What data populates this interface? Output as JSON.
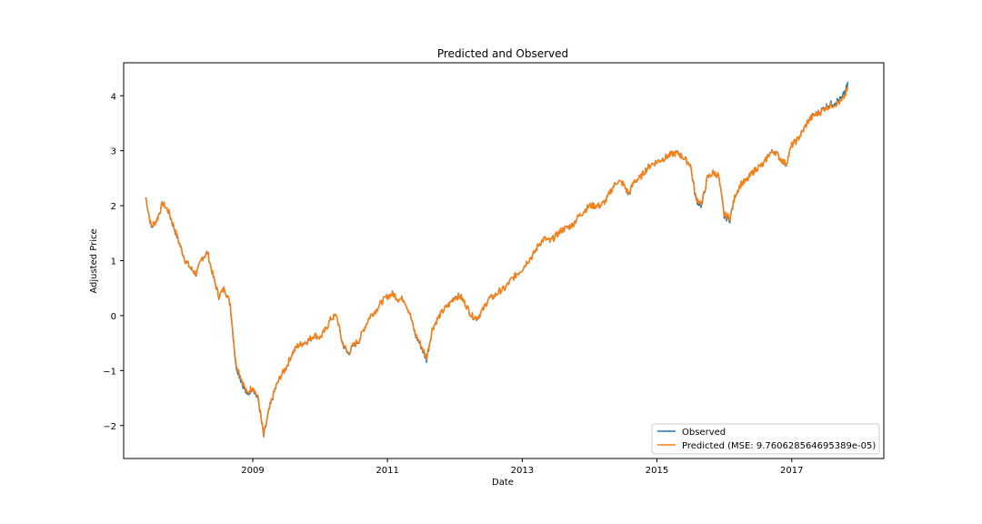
{
  "chart_data": {
    "type": "line",
    "title": "Predicted and Observed",
    "xlabel": "Date",
    "ylabel": "Adjusted Price",
    "xlim": [
      "2007-02-01",
      "2018-05-15"
    ],
    "ylim": [
      -2.6,
      4.6
    ],
    "x_ticks": [
      "2009",
      "2011",
      "2013",
      "2015",
      "2017"
    ],
    "y_ticks": [
      "−2",
      "−1",
      "0",
      "1",
      "2",
      "3",
      "4"
    ],
    "y_tick_values": [
      -2,
      -1,
      0,
      1,
      2,
      3,
      4
    ],
    "grid": false,
    "legend_position": "lower-right",
    "series": [
      {
        "name": "Observed",
        "color": "#1f77b4",
        "x": [
          "2007-06-01",
          "2007-07-01",
          "2007-08-01",
          "2007-09-01",
          "2007-10-01",
          "2007-11-01",
          "2007-12-01",
          "2008-01-01",
          "2008-02-01",
          "2008-03-01",
          "2008-04-01",
          "2008-05-01",
          "2008-06-01",
          "2008-07-01",
          "2008-08-01",
          "2008-09-01",
          "2008-10-01",
          "2008-11-01",
          "2008-12-01",
          "2009-01-01",
          "2009-02-01",
          "2009-03-01",
          "2009-04-01",
          "2009-05-01",
          "2009-06-01",
          "2009-07-01",
          "2009-08-01",
          "2009-09-01",
          "2009-10-01",
          "2009-11-01",
          "2009-12-01",
          "2010-01-01",
          "2010-02-01",
          "2010-03-01",
          "2010-04-01",
          "2010-05-01",
          "2010-06-01",
          "2010-07-01",
          "2010-08-01",
          "2010-09-01",
          "2010-10-01",
          "2010-11-01",
          "2010-12-01",
          "2011-01-01",
          "2011-02-01",
          "2011-03-01",
          "2011-04-01",
          "2011-05-01",
          "2011-06-01",
          "2011-07-01",
          "2011-08-01",
          "2011-09-01",
          "2011-10-01",
          "2011-11-01",
          "2011-12-01",
          "2012-01-01",
          "2012-02-01",
          "2012-03-01",
          "2012-04-01",
          "2012-05-01",
          "2012-06-01",
          "2012-07-01",
          "2012-08-01",
          "2012-09-01",
          "2012-10-01",
          "2012-11-01",
          "2012-12-01",
          "2013-01-01",
          "2013-02-01",
          "2013-03-01",
          "2013-04-01",
          "2013-05-01",
          "2013-06-01",
          "2013-07-01",
          "2013-08-01",
          "2013-09-01",
          "2013-10-01",
          "2013-11-01",
          "2013-12-01",
          "2014-01-01",
          "2014-02-01",
          "2014-03-01",
          "2014-04-01",
          "2014-05-01",
          "2014-06-01",
          "2014-07-01",
          "2014-08-01",
          "2014-09-01",
          "2014-10-01",
          "2014-11-01",
          "2014-12-01",
          "2015-01-01",
          "2015-02-01",
          "2015-03-01",
          "2015-04-01",
          "2015-05-01",
          "2015-06-01",
          "2015-07-01",
          "2015-08-01",
          "2015-09-01",
          "2015-10-01",
          "2015-11-01",
          "2015-12-01",
          "2016-01-01",
          "2016-02-01",
          "2016-03-01",
          "2016-04-01",
          "2016-05-01",
          "2016-06-01",
          "2016-07-01",
          "2016-08-01",
          "2016-09-01",
          "2016-10-01",
          "2016-11-01",
          "2016-12-01",
          "2017-01-01",
          "2017-02-01",
          "2017-03-01",
          "2017-04-01",
          "2017-05-01",
          "2017-06-01",
          "2017-07-01",
          "2017-08-01",
          "2017-09-01",
          "2017-10-01",
          "2017-11-01"
        ],
        "y": [
          2.15,
          1.6,
          1.75,
          2.05,
          1.9,
          1.6,
          1.3,
          1.0,
          0.85,
          0.75,
          1.05,
          1.15,
          0.7,
          0.35,
          0.5,
          0.2,
          -0.9,
          -1.2,
          -1.45,
          -1.3,
          -1.55,
          -2.2,
          -1.7,
          -1.35,
          -1.1,
          -0.95,
          -0.7,
          -0.55,
          -0.5,
          -0.45,
          -0.35,
          -0.4,
          -0.25,
          -0.05,
          0.0,
          -0.5,
          -0.7,
          -0.55,
          -0.45,
          -0.2,
          0.0,
          0.1,
          0.25,
          0.35,
          0.4,
          0.3,
          0.3,
          0.05,
          -0.35,
          -0.55,
          -0.8,
          -0.25,
          -0.05,
          0.1,
          0.2,
          0.35,
          0.35,
          0.2,
          0.0,
          -0.05,
          0.1,
          0.3,
          0.35,
          0.45,
          0.5,
          0.65,
          0.75,
          0.85,
          1.0,
          1.1,
          1.3,
          1.4,
          1.35,
          1.45,
          1.55,
          1.6,
          1.65,
          1.8,
          1.9,
          2.0,
          2.0,
          2.0,
          2.1,
          2.3,
          2.45,
          2.4,
          2.2,
          2.45,
          2.5,
          2.65,
          2.75,
          2.8,
          2.85,
          2.9,
          2.95,
          2.95,
          2.85,
          2.75,
          2.1,
          2.0,
          2.5,
          2.6,
          2.55,
          1.8,
          1.75,
          2.2,
          2.4,
          2.45,
          2.6,
          2.7,
          2.75,
          2.95,
          3.0,
          2.85,
          2.75,
          3.1,
          3.2,
          3.35,
          3.55,
          3.65,
          3.7,
          3.8,
          3.85,
          3.9,
          3.95,
          4.2
        ]
      },
      {
        "name": "Predicted (MSE: 9.760628564695389e-05)",
        "color": "#ff7f0e",
        "x": [
          "2007-06-01",
          "2007-07-01",
          "2007-08-01",
          "2007-09-01",
          "2007-10-01",
          "2007-11-01",
          "2007-12-01",
          "2008-01-01",
          "2008-02-01",
          "2008-03-01",
          "2008-04-01",
          "2008-05-01",
          "2008-06-01",
          "2008-07-01",
          "2008-08-01",
          "2008-09-01",
          "2008-10-01",
          "2008-11-01",
          "2008-12-01",
          "2009-01-01",
          "2009-02-01",
          "2009-03-01",
          "2009-04-01",
          "2009-05-01",
          "2009-06-01",
          "2009-07-01",
          "2009-08-01",
          "2009-09-01",
          "2009-10-01",
          "2009-11-01",
          "2009-12-01",
          "2010-01-01",
          "2010-02-01",
          "2010-03-01",
          "2010-04-01",
          "2010-05-01",
          "2010-06-01",
          "2010-07-01",
          "2010-08-01",
          "2010-09-01",
          "2010-10-01",
          "2010-11-01",
          "2010-12-01",
          "2011-01-01",
          "2011-02-01",
          "2011-03-01",
          "2011-04-01",
          "2011-05-01",
          "2011-06-01",
          "2011-07-01",
          "2011-08-01",
          "2011-09-01",
          "2011-10-01",
          "2011-11-01",
          "2011-12-01",
          "2012-01-01",
          "2012-02-01",
          "2012-03-01",
          "2012-04-01",
          "2012-05-01",
          "2012-06-01",
          "2012-07-01",
          "2012-08-01",
          "2012-09-01",
          "2012-10-01",
          "2012-11-01",
          "2012-12-01",
          "2013-01-01",
          "2013-02-01",
          "2013-03-01",
          "2013-04-01",
          "2013-05-01",
          "2013-06-01",
          "2013-07-01",
          "2013-08-01",
          "2013-09-01",
          "2013-10-01",
          "2013-11-01",
          "2013-12-01",
          "2014-01-01",
          "2014-02-01",
          "2014-03-01",
          "2014-04-01",
          "2014-05-01",
          "2014-06-01",
          "2014-07-01",
          "2014-08-01",
          "2014-09-01",
          "2014-10-01",
          "2014-11-01",
          "2014-12-01",
          "2015-01-01",
          "2015-02-01",
          "2015-03-01",
          "2015-04-01",
          "2015-05-01",
          "2015-06-01",
          "2015-07-01",
          "2015-08-01",
          "2015-09-01",
          "2015-10-01",
          "2015-11-01",
          "2015-12-01",
          "2016-01-01",
          "2016-02-01",
          "2016-03-01",
          "2016-04-01",
          "2016-05-01",
          "2016-06-01",
          "2016-07-01",
          "2016-08-01",
          "2016-09-01",
          "2016-10-01",
          "2016-11-01",
          "2016-12-01",
          "2017-01-01",
          "2017-02-01",
          "2017-03-01",
          "2017-04-01",
          "2017-05-01",
          "2017-06-01",
          "2017-07-01",
          "2017-08-01",
          "2017-09-01",
          "2017-10-01",
          "2017-11-01"
        ],
        "y": [
          2.14,
          1.62,
          1.74,
          2.04,
          1.91,
          1.62,
          1.31,
          1.01,
          0.86,
          0.76,
          1.04,
          1.14,
          0.71,
          0.36,
          0.49,
          0.22,
          -0.85,
          -1.15,
          -1.42,
          -1.28,
          -1.52,
          -2.18,
          -1.68,
          -1.34,
          -1.1,
          -0.94,
          -0.7,
          -0.55,
          -0.5,
          -0.44,
          -0.35,
          -0.4,
          -0.25,
          -0.05,
          0.0,
          -0.48,
          -0.68,
          -0.54,
          -0.44,
          -0.2,
          0.0,
          0.1,
          0.25,
          0.35,
          0.39,
          0.3,
          0.3,
          0.05,
          -0.33,
          -0.53,
          -0.76,
          -0.25,
          -0.05,
          0.1,
          0.2,
          0.34,
          0.34,
          0.2,
          0.0,
          -0.04,
          0.1,
          0.3,
          0.35,
          0.45,
          0.5,
          0.65,
          0.75,
          0.85,
          1.0,
          1.1,
          1.3,
          1.4,
          1.35,
          1.45,
          1.55,
          1.6,
          1.65,
          1.8,
          1.9,
          2.0,
          2.0,
          2.0,
          2.1,
          2.3,
          2.45,
          2.4,
          2.22,
          2.45,
          2.5,
          2.65,
          2.75,
          2.8,
          2.85,
          2.9,
          2.95,
          2.94,
          2.85,
          2.75,
          2.14,
          2.04,
          2.5,
          2.6,
          2.55,
          1.84,
          1.78,
          2.2,
          2.4,
          2.45,
          2.6,
          2.7,
          2.75,
          2.94,
          2.99,
          2.85,
          2.76,
          3.1,
          3.2,
          3.35,
          3.54,
          3.64,
          3.69,
          3.78,
          3.82,
          3.86,
          3.9,
          4.12
        ]
      }
    ]
  }
}
